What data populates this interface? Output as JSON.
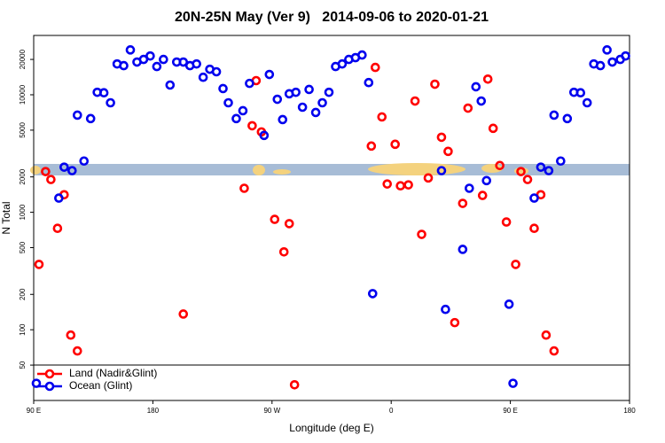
{
  "chart_data": {
    "type": "scatter",
    "title": "20N-25N May (Ver 9)   2014-09-06 to 2020-01-21",
    "x_label": "Longitude (deg E)",
    "y_label": "N Total",
    "xlim": [
      90,
      540
    ],
    "xticks": [
      {
        "value": 90,
        "label": "90 E"
      },
      {
        "value": 180,
        "label": "180"
      },
      {
        "value": 270,
        "label": "90 W"
      },
      {
        "value": 360,
        "label": "0"
      },
      {
        "value": 450,
        "label": "90 E"
      },
      {
        "value": 540,
        "label": "180"
      }
    ],
    "ylim": [
      25,
      32000
    ],
    "log_y": true,
    "yticks": [
      50,
      100,
      200,
      500,
      1000,
      2000,
      5000,
      10000,
      20000
    ],
    "legend": "bottom left",
    "series": [
      {
        "name": "Land (Nadir&Glint)",
        "color": "#ff0000",
        "x": [
          94,
          99,
          103,
          108,
          113,
          118,
          123,
          203,
          249,
          255,
          258,
          262,
          272,
          279,
          283,
          287,
          345,
          348,
          353,
          357,
          363,
          367,
          373,
          378,
          383,
          388,
          393,
          398,
          403,
          408,
          414,
          418,
          429,
          433,
          437,
          442,
          447,
          454,
          458,
          463,
          468,
          473,
          477,
          483
        ],
        "values": [
          360,
          2220,
          1900,
          730,
          1410,
          90,
          66,
          136,
          1600,
          5450,
          13200,
          4830,
          870,
          460,
          800,
          34,
          3660,
          17100,
          6480,
          1740,
          3790,
          1680,
          1710,
          8850,
          648,
          1960,
          12300,
          4350,
          3300,
          115,
          1190,
          7700,
          1390,
          13600,
          5180,
          2500,
          826,
          360,
          2220,
          1900,
          730,
          1410,
          90,
          66
        ]
      },
      {
        "name": "Ocean (Glint)",
        "color": "#0000ee",
        "x": [
          92,
          109,
          113,
          119,
          123,
          128,
          133,
          138,
          143,
          148,
          153,
          158,
          163,
          168,
          173,
          178,
          183,
          188,
          193,
          198,
          203,
          208,
          213,
          218,
          223,
          228,
          233,
          237,
          243,
          248,
          253,
          264,
          268,
          274,
          278,
          283,
          288,
          293,
          298,
          303,
          308,
          313,
          318,
          323,
          328,
          333,
          338,
          343,
          346,
          398,
          401,
          414,
          419,
          424,
          428,
          432,
          449,
          452,
          468,
          473,
          479,
          483,
          488,
          493,
          498,
          503,
          508,
          513,
          518,
          523,
          527,
          533,
          537
        ],
        "values": [
          35,
          1320,
          2420,
          2260,
          6710,
          2730,
          6270,
          10500,
          10400,
          8550,
          18300,
          17700,
          24100,
          19000,
          20000,
          21400,
          17400,
          20000,
          12100,
          19000,
          19000,
          17700,
          18300,
          14100,
          16500,
          15700,
          11300,
          8550,
          6270,
          7320,
          12500,
          4510,
          14900,
          9160,
          6150,
          10200,
          10500,
          7840,
          11100,
          7070,
          8550,
          10500,
          17400,
          18300,
          20000,
          20700,
          21800,
          12700,
          203,
          2260,
          149,
          483,
          1600,
          11700,
          8850,
          1860,
          165,
          35,
          1320,
          2420,
          2260,
          6710,
          2730,
          6270,
          10500,
          10400,
          8550,
          18300,
          17700,
          24100,
          19000,
          20000,
          21400
        ]
      }
    ]
  }
}
